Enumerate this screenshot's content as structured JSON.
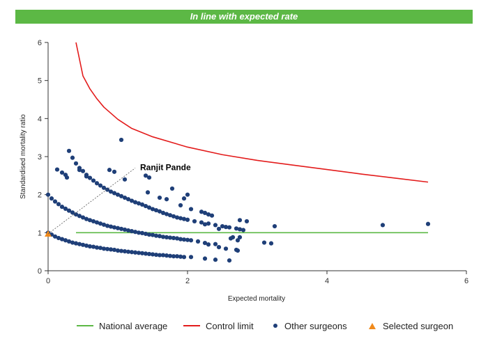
{
  "banner": {
    "text": "In line with expected rate"
  },
  "chart_data": {
    "type": "scatter",
    "xlabel": "Expected mortality",
    "ylabel": "Standardised mortality ratio",
    "xlim": [
      0,
      6
    ],
    "ylim": [
      0,
      6
    ],
    "x_ticks": [
      "0",
      "2",
      "4",
      "6"
    ],
    "y_ticks": [
      "0",
      "1",
      "2",
      "3",
      "4",
      "5",
      "6"
    ],
    "grid": false,
    "legend_position": "bottom",
    "colors": {
      "national_average": "#5cb845",
      "control_limit": "#e31b1b",
      "other_surgeons": "#1f3f78",
      "selected_surgeon": "#f08a1c"
    },
    "series": [
      {
        "name": "National average",
        "kind": "line",
        "points": [
          [
            0.4,
            1.0
          ],
          [
            5.45,
            1.0
          ]
        ]
      },
      {
        "name": "Control limit",
        "kind": "line",
        "points": [
          [
            0.4,
            6.0
          ],
          [
            0.5,
            5.12
          ],
          [
            0.6,
            4.78
          ],
          [
            0.7,
            4.52
          ],
          [
            0.8,
            4.3
          ],
          [
            1.0,
            3.98
          ],
          [
            1.2,
            3.74
          ],
          [
            1.5,
            3.52
          ],
          [
            2.0,
            3.25
          ],
          [
            2.5,
            3.05
          ],
          [
            3.0,
            2.9
          ],
          [
            3.5,
            2.78
          ],
          [
            4.0,
            2.66
          ],
          [
            4.5,
            2.54
          ],
          [
            5.0,
            2.43
          ],
          [
            5.45,
            2.33
          ]
        ]
      },
      {
        "name": "Other surgeons",
        "kind": "scatter",
        "points": [
          [
            0.0,
            1.0
          ],
          [
            0.05,
            0.95
          ],
          [
            0.1,
            0.9
          ],
          [
            0.15,
            0.86
          ],
          [
            0.2,
            0.83
          ],
          [
            0.25,
            0.8
          ],
          [
            0.3,
            0.77
          ],
          [
            0.35,
            0.74
          ],
          [
            0.4,
            0.72
          ],
          [
            0.45,
            0.7
          ],
          [
            0.5,
            0.68
          ],
          [
            0.55,
            0.66
          ],
          [
            0.6,
            0.64
          ],
          [
            0.65,
            0.63
          ],
          [
            0.7,
            0.61
          ],
          [
            0.75,
            0.6
          ],
          [
            0.8,
            0.58
          ],
          [
            0.85,
            0.57
          ],
          [
            0.9,
            0.56
          ],
          [
            0.95,
            0.55
          ],
          [
            1.0,
            0.53
          ],
          [
            1.05,
            0.52
          ],
          [
            1.1,
            0.51
          ],
          [
            1.15,
            0.5
          ],
          [
            1.2,
            0.49
          ],
          [
            1.25,
            0.48
          ],
          [
            1.3,
            0.47
          ],
          [
            1.35,
            0.46
          ],
          [
            1.4,
            0.45
          ],
          [
            1.45,
            0.44
          ],
          [
            1.5,
            0.43
          ],
          [
            1.55,
            0.42
          ],
          [
            1.6,
            0.41
          ],
          [
            1.65,
            0.41
          ],
          [
            1.7,
            0.4
          ],
          [
            1.75,
            0.39
          ],
          [
            1.8,
            0.38
          ],
          [
            1.85,
            0.38
          ],
          [
            1.9,
            0.37
          ],
          [
            1.95,
            0.36
          ],
          [
            2.05,
            0.36
          ],
          [
            2.25,
            0.32
          ],
          [
            2.4,
            0.29
          ],
          [
            2.6,
            0.27
          ],
          [
            0.0,
            2.0
          ],
          [
            0.05,
            1.9
          ],
          [
            0.1,
            1.82
          ],
          [
            0.15,
            1.75
          ],
          [
            0.2,
            1.68
          ],
          [
            0.25,
            1.63
          ],
          [
            0.3,
            1.58
          ],
          [
            0.35,
            1.53
          ],
          [
            0.4,
            1.48
          ],
          [
            0.45,
            1.44
          ],
          [
            0.5,
            1.4
          ],
          [
            0.55,
            1.36
          ],
          [
            0.6,
            1.33
          ],
          [
            0.65,
            1.3
          ],
          [
            0.7,
            1.27
          ],
          [
            0.75,
            1.24
          ],
          [
            0.8,
            1.21
          ],
          [
            0.85,
            1.18
          ],
          [
            0.9,
            1.16
          ],
          [
            0.95,
            1.14
          ],
          [
            1.0,
            1.12
          ],
          [
            1.05,
            1.1
          ],
          [
            1.1,
            1.08
          ],
          [
            1.15,
            1.06
          ],
          [
            1.2,
            1.04
          ],
          [
            1.25,
            1.02
          ],
          [
            1.3,
            1.0
          ],
          [
            1.35,
            0.99
          ],
          [
            1.4,
            0.97
          ],
          [
            1.45,
            0.95
          ],
          [
            1.5,
            0.94
          ],
          [
            1.55,
            0.92
          ],
          [
            1.6,
            0.91
          ],
          [
            1.65,
            0.89
          ],
          [
            1.7,
            0.88
          ],
          [
            1.75,
            0.87
          ],
          [
            1.8,
            0.86
          ],
          [
            1.85,
            0.85
          ],
          [
            1.9,
            0.83
          ],
          [
            1.95,
            0.82
          ],
          [
            2.0,
            0.81
          ],
          [
            2.05,
            0.8
          ],
          [
            2.15,
            0.77
          ],
          [
            2.25,
            0.73
          ],
          [
            2.4,
            0.7
          ],
          [
            2.45,
            0.62
          ],
          [
            2.55,
            0.58
          ],
          [
            2.7,
            0.55
          ],
          [
            2.3,
            0.69
          ],
          [
            0.3,
            3.15
          ],
          [
            0.35,
            2.97
          ],
          [
            0.4,
            2.82
          ],
          [
            0.45,
            2.7
          ],
          [
            0.5,
            2.62
          ],
          [
            0.55,
            2.52
          ],
          [
            0.6,
            2.44
          ],
          [
            0.65,
            2.37
          ],
          [
            0.7,
            2.3
          ],
          [
            0.75,
            2.24
          ],
          [
            0.8,
            2.18
          ],
          [
            0.85,
            2.13
          ],
          [
            0.9,
            2.08
          ],
          [
            0.95,
            2.04
          ],
          [
            1.0,
            2.0
          ],
          [
            1.05,
            1.96
          ],
          [
            1.1,
            1.92
          ],
          [
            1.15,
            1.88
          ],
          [
            1.2,
            1.84
          ],
          [
            1.25,
            1.8
          ],
          [
            1.3,
            1.77
          ],
          [
            1.35,
            1.74
          ],
          [
            1.4,
            1.7
          ],
          [
            1.45,
            1.66
          ],
          [
            1.5,
            1.62
          ],
          [
            1.55,
            1.59
          ],
          [
            1.6,
            1.56
          ],
          [
            1.65,
            1.52
          ],
          [
            1.7,
            1.49
          ],
          [
            1.75,
            1.46
          ],
          [
            1.8,
            1.43
          ],
          [
            1.85,
            1.4
          ],
          [
            1.9,
            1.38
          ],
          [
            1.95,
            1.36
          ],
          [
            2.0,
            1.34
          ],
          [
            2.1,
            1.3
          ],
          [
            2.2,
            1.27
          ],
          [
            2.3,
            1.24
          ],
          [
            2.4,
            1.2
          ],
          [
            2.5,
            1.17
          ],
          [
            2.6,
            1.14
          ],
          [
            2.7,
            1.11
          ],
          [
            2.75,
            1.09
          ],
          [
            0.13,
            2.66
          ],
          [
            0.2,
            2.58
          ],
          [
            0.25,
            2.52
          ],
          [
            0.27,
            2.45
          ],
          [
            0.45,
            2.65
          ],
          [
            0.55,
            2.48
          ],
          [
            0.88,
            2.65
          ],
          [
            0.95,
            2.6
          ],
          [
            1.05,
            3.44
          ],
          [
            1.1,
            2.4
          ],
          [
            1.4,
            2.5
          ],
          [
            1.45,
            2.45
          ],
          [
            1.43,
            2.06
          ],
          [
            1.6,
            1.92
          ],
          [
            1.7,
            1.88
          ],
          [
            1.78,
            2.16
          ],
          [
            1.95,
            1.9
          ],
          [
            2.0,
            2.0
          ],
          [
            2.05,
            1.62
          ],
          [
            1.9,
            1.72
          ],
          [
            2.2,
            1.55
          ],
          [
            2.25,
            1.52
          ],
          [
            2.3,
            1.48
          ],
          [
            2.35,
            1.45
          ],
          [
            2.25,
            1.22
          ],
          [
            2.45,
            1.1
          ],
          [
            2.55,
            1.15
          ],
          [
            2.65,
            0.88
          ],
          [
            2.72,
            0.8
          ],
          [
            2.75,
            0.88
          ],
          [
            2.8,
            1.07
          ],
          [
            2.75,
            1.33
          ],
          [
            2.85,
            1.3
          ],
          [
            2.62,
            0.85
          ],
          [
            2.72,
            0.53
          ],
          [
            3.1,
            0.74
          ],
          [
            3.2,
            0.72
          ],
          [
            3.25,
            1.17
          ],
          [
            4.8,
            1.2
          ],
          [
            5.45,
            1.23
          ]
        ]
      },
      {
        "name": "Selected surgeon",
        "kind": "scatter",
        "points": [
          [
            0.0,
            0.97
          ]
        ]
      }
    ],
    "annotations": [
      {
        "text": "Ranjit Pande",
        "from": [
          0.0,
          0.97
        ],
        "to": [
          1.25,
          2.7
        ]
      }
    ]
  }
}
